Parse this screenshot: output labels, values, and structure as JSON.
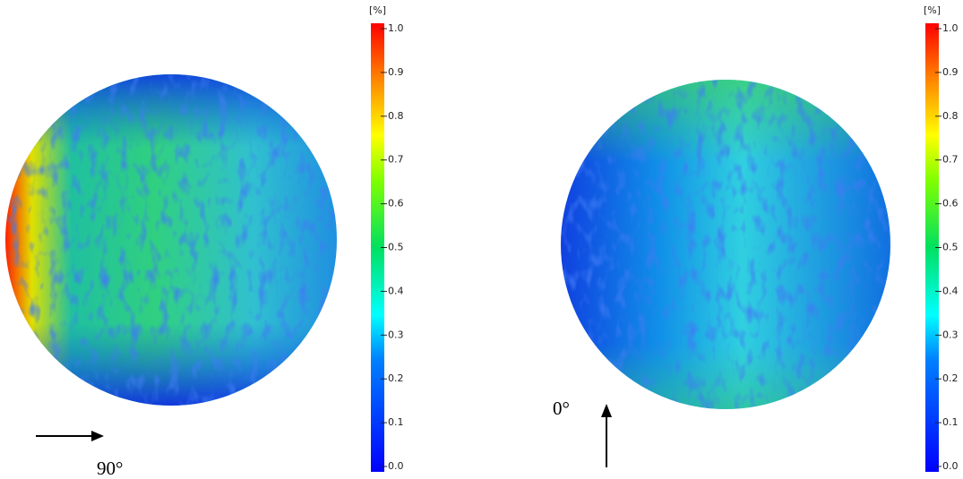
{
  "panels": [
    {
      "colorbar": {
        "unit": "[%]",
        "ticks": [
          {
            "value": 0,
            "label": "0.0"
          },
          {
            "value": 0.1,
            "label": "0.1"
          },
          {
            "value": 0.2,
            "label": "0.2"
          },
          {
            "value": 0.3,
            "label": "0.3"
          },
          {
            "value": 0.4,
            "label": "0.4"
          },
          {
            "value": 0.5,
            "label": "0.5"
          },
          {
            "value": 0.6,
            "label": "0.6"
          },
          {
            "value": 0.7,
            "label": "0.7"
          },
          {
            "value": 0.8,
            "label": "0.8"
          },
          {
            "value": 0.9,
            "label": "0.9"
          },
          {
            "value": 1,
            "label": "1.0"
          }
        ]
      },
      "direction_label": "90°"
    },
    {
      "colorbar": {
        "unit": "[%]",
        "ticks": [
          {
            "value": 0,
            "label": "0.0"
          },
          {
            "value": 0.1,
            "label": "0.1"
          },
          {
            "value": 0.2,
            "label": "0.2"
          },
          {
            "value": 0.3,
            "label": "0.3"
          },
          {
            "value": 0.4,
            "label": "0.4"
          },
          {
            "value": 0.5,
            "label": "0.5"
          },
          {
            "value": 0.6,
            "label": "0.6"
          },
          {
            "value": 0.7,
            "label": "0.7"
          },
          {
            "value": 0.8,
            "label": "0.8"
          },
          {
            "value": 0.9,
            "label": "0.9"
          },
          {
            "value": 1,
            "label": "1.0"
          }
        ]
      },
      "direction_label": "0°"
    }
  ]
}
